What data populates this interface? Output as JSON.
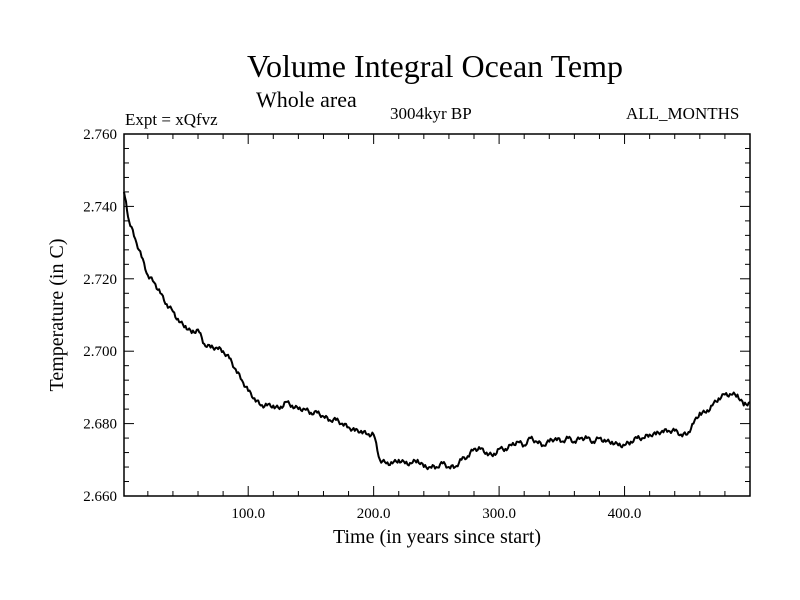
{
  "chart_data": {
    "type": "line",
    "title": "Volume Integral Ocean Temp",
    "subtitle": "Whole area",
    "annotations": {
      "experiment": "Expt = xQfvz",
      "period": "3004kyr BP",
      "months": "ALL_MONTHS"
    },
    "xlabel": "Time (in years since start)",
    "ylabel": "Temperature (in C)",
    "xlim": [
      1,
      500
    ],
    "ylim": [
      2.66,
      2.76
    ],
    "x_ticks": [
      100,
      200,
      300,
      400
    ],
    "x_tick_labels": [
      "100.0",
      "200.0",
      "300.0",
      "400.0"
    ],
    "y_ticks": [
      2.66,
      2.68,
      2.7,
      2.72,
      2.74,
      2.76
    ],
    "y_tick_labels": [
      "2.660",
      "2.680",
      "2.700",
      "2.720",
      "2.740",
      "2.760"
    ],
    "grid": false,
    "series": [
      {
        "name": "Volume integral ocean temperature",
        "x": [
          1,
          5,
          10,
          15,
          20,
          25,
          30,
          35,
          40,
          45,
          50,
          55,
          60,
          65,
          70,
          75,
          80,
          85,
          90,
          95,
          100,
          105,
          110,
          115,
          120,
          125,
          130,
          135,
          140,
          145,
          150,
          155,
          160,
          165,
          170,
          175,
          180,
          185,
          190,
          195,
          200,
          205,
          210,
          215,
          220,
          225,
          230,
          235,
          240,
          245,
          250,
          255,
          260,
          265,
          270,
          275,
          280,
          285,
          290,
          295,
          300,
          305,
          310,
          315,
          320,
          325,
          330,
          335,
          340,
          345,
          350,
          355,
          360,
          365,
          370,
          375,
          380,
          385,
          390,
          395,
          400,
          405,
          410,
          415,
          420,
          425,
          430,
          435,
          440,
          445,
          450,
          455,
          460,
          465,
          470,
          475,
          480,
          485,
          490,
          495,
          500
        ],
        "values": [
          2.744,
          2.736,
          2.731,
          2.726,
          2.721,
          2.719,
          2.716,
          2.713,
          2.711,
          2.708,
          2.707,
          2.705,
          2.706,
          2.702,
          2.701,
          2.701,
          2.7,
          2.698,
          2.695,
          2.692,
          2.689,
          2.687,
          2.685,
          2.685,
          2.685,
          2.684,
          2.686,
          2.685,
          2.684,
          2.684,
          2.683,
          2.683,
          2.682,
          2.681,
          2.681,
          2.68,
          2.679,
          2.678,
          2.678,
          2.677,
          2.677,
          2.67,
          2.669,
          2.669,
          2.67,
          2.669,
          2.669,
          2.67,
          2.668,
          2.668,
          2.668,
          2.669,
          2.668,
          2.668,
          2.67,
          2.671,
          2.673,
          2.673,
          2.672,
          2.671,
          2.673,
          2.673,
          2.674,
          2.675,
          2.674,
          2.676,
          2.675,
          2.674,
          2.675,
          2.676,
          2.675,
          2.676,
          2.675,
          2.676,
          2.676,
          2.675,
          2.676,
          2.675,
          2.675,
          2.674,
          2.674,
          2.675,
          2.676,
          2.676,
          2.677,
          2.677,
          2.678,
          2.678,
          2.678,
          2.677,
          2.677,
          2.68,
          2.683,
          2.683,
          2.685,
          2.687,
          2.688,
          2.688,
          2.688,
          2.685,
          2.686
        ]
      }
    ]
  }
}
